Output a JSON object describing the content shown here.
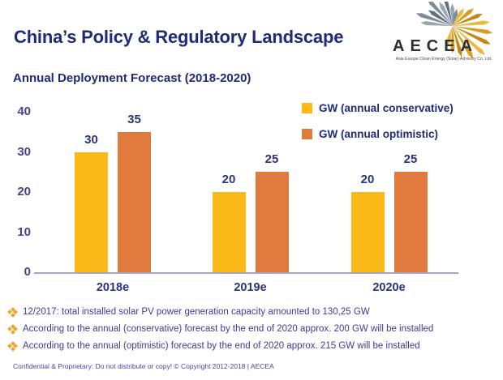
{
  "slide": {
    "title": "China’s Policy & Regulatory Landscape",
    "subtitle": "Annual Deployment Forecast (2018-2020)",
    "footer": "Confidential & Proprietary: Do not distribute or copy! © Copyright 2012-2018 | AECEA"
  },
  "logo": {
    "wordmark": "AECEA",
    "tagline": "Asia Europe Clean Energy (Solar) Advisory Co. Ltd.",
    "icon": "starburst-rays-icon",
    "ray_colors_gray": [
      "#9AA6B1",
      "#7C8C9B",
      "#5E7082"
    ],
    "ray_colors_gold": [
      "#E8B93B",
      "#D99C1F",
      "#C28A15"
    ]
  },
  "chart_data": {
    "type": "bar",
    "title": "Annual Deployment Forecast (2018-2020)",
    "categories": [
      "2018e",
      "2019e",
      "2020e"
    ],
    "series": [
      {
        "name": "GW (annual conservative)",
        "color": "#FBB917",
        "values": [
          30,
          20,
          20
        ]
      },
      {
        "name": "GW (annual optimistic)",
        "color": "#E17A3D",
        "values": [
          35,
          25,
          25
        ]
      }
    ],
    "ylim": [
      0,
      40
    ],
    "yticks": [
      0,
      10,
      20,
      30,
      40
    ],
    "grid": false,
    "legend_position": "top-right",
    "data_labels": true,
    "xlabel": "",
    "ylabel": ""
  },
  "bullets": [
    "12/2017: total installed solar PV power generation capacity amounted to 130,25 GW",
    "According to the annual (conservative) forecast by the end of 2020 approx. 200 GW will be installed",
    "According to the annual (optimistic) forecast by the end of 2020 approx. 215 GW will be installed"
  ],
  "bullet_marker_icon": "four-diamond-icon",
  "colors": {
    "title_text": "#1F2A7A",
    "body_text": "#3C3C96",
    "tick_text": "#43438F",
    "axis_line": "#A5A5BF",
    "bullet_marker": "#EEA42E",
    "footer_text": "#4444AA"
  }
}
